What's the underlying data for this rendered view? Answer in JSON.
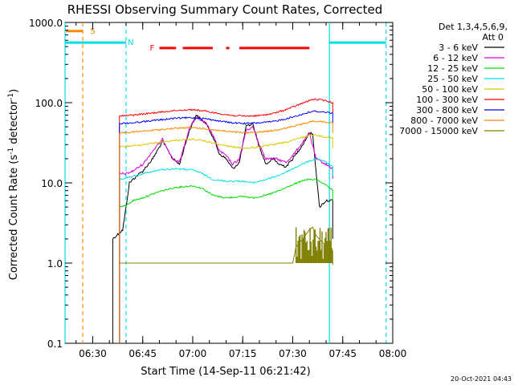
{
  "chart_data": {
    "type": "line",
    "title": "RHESSI Observing Summary Count Rates, Corrected",
    "xlabel": "Start Time (14-Sep-11 06:21:42)",
    "ylabel": "Corrected Count Rate (s⁻¹ detector⁻¹)",
    "ylabel_parts": {
      "main": "Corrected Count Rate (s",
      "sup1": "-1",
      "mid": " detector",
      "sup2": "-1",
      "end": ")"
    },
    "yscale": "log",
    "ylim": [
      0.1,
      1000
    ],
    "xlim": [
      "06:21:42",
      "08:00:00"
    ],
    "x_ticks": [
      "06:30",
      "06:45",
      "07:00",
      "07:15",
      "07:30",
      "07:45",
      "08:00"
    ],
    "y_ticks": [
      "0.1",
      "1.0",
      "10.0",
      "100.0",
      "1000.0"
    ],
    "detectors": "Det 1,3,4,5,6,9,",
    "attenuator": "Att 0",
    "timestamp": "20-Oct-2021 04:43",
    "series": [
      {
        "name": "3 - 6 keV",
        "color": "#000000",
        "points": [
          [
            "06:36:00",
            2.0
          ],
          [
            "06:39:00",
            2.6
          ],
          [
            "06:40:00",
            5
          ],
          [
            "06:41:00",
            10
          ],
          [
            "06:43:00",
            12
          ],
          [
            "06:45:00",
            14
          ],
          [
            "06:48:00",
            20
          ],
          [
            "06:51:00",
            33
          ],
          [
            "06:54:00",
            20
          ],
          [
            "06:56:00",
            17
          ],
          [
            "06:59:00",
            45
          ],
          [
            "07:01:00",
            70
          ],
          [
            "07:04:00",
            55
          ],
          [
            "07:06:00",
            38
          ],
          [
            "07:08:00",
            23
          ],
          [
            "07:10:00",
            20
          ],
          [
            "07:12:00",
            15
          ],
          [
            "07:14:00",
            18
          ],
          [
            "07:16:00",
            50
          ],
          [
            "07:18:00",
            55
          ],
          [
            "07:20:00",
            28
          ],
          [
            "07:22:00",
            17
          ],
          [
            "07:24:00",
            20
          ],
          [
            "07:26:00",
            17
          ],
          [
            "07:28:00",
            16
          ],
          [
            "07:30:00",
            20
          ],
          [
            "07:33:00",
            30
          ],
          [
            "07:35:00",
            42
          ],
          [
            "07:36:00",
            40
          ],
          [
            "07:37:00",
            14
          ],
          [
            "07:38:00",
            5
          ],
          [
            "07:40:00",
            6
          ],
          [
            "07:42:00",
            6
          ]
        ]
      },
      {
        "name": "6 - 12 keV",
        "color": "#dd00dd",
        "points": [
          [
            "06:38:00",
            13
          ],
          [
            "06:40:00",
            13
          ],
          [
            "06:42:00",
            14
          ],
          [
            "06:45:00",
            17
          ],
          [
            "06:48:00",
            25
          ],
          [
            "06:51:00",
            35
          ],
          [
            "06:54:00",
            20
          ],
          [
            "06:56:00",
            18
          ],
          [
            "06:59:00",
            48
          ],
          [
            "07:01:00",
            65
          ],
          [
            "07:04:00",
            55
          ],
          [
            "07:06:00",
            40
          ],
          [
            "07:08:00",
            25
          ],
          [
            "07:10:00",
            22
          ],
          [
            "07:12:00",
            17
          ],
          [
            "07:14:00",
            20
          ],
          [
            "07:16:00",
            45
          ],
          [
            "07:18:00",
            50
          ],
          [
            "07:20:00",
            30
          ],
          [
            "07:22:00",
            20
          ],
          [
            "07:25:00",
            20
          ],
          [
            "07:28:00",
            18
          ],
          [
            "07:30:00",
            22
          ],
          [
            "07:33:00",
            32
          ],
          [
            "07:35:00",
            42
          ],
          [
            "07:37:00",
            20
          ],
          [
            "07:40:00",
            17
          ],
          [
            "07:42:00",
            15
          ]
        ]
      },
      {
        "name": "12 - 25 keV",
        "color": "#00dd00",
        "points": [
          [
            "06:38:00",
            5.0
          ],
          [
            "06:40:00",
            5.2
          ],
          [
            "06:42:00",
            6.0
          ],
          [
            "06:45:00",
            6.5
          ],
          [
            "06:50:00",
            7.8
          ],
          [
            "06:55:00",
            8.8
          ],
          [
            "07:00:00",
            9.2
          ],
          [
            "07:03:00",
            8.5
          ],
          [
            "07:06:00",
            7.0
          ],
          [
            "07:10:00",
            6.5
          ],
          [
            "07:15:00",
            6.8
          ],
          [
            "07:18:00",
            6.5
          ],
          [
            "07:22:00",
            7.0
          ],
          [
            "07:26:00",
            8.0
          ],
          [
            "07:30:00",
            9.5
          ],
          [
            "07:34:00",
            11
          ],
          [
            "07:37:00",
            11
          ],
          [
            "07:39:00",
            10
          ],
          [
            "07:42:00",
            8
          ]
        ]
      },
      {
        "name": "25 - 50 keV",
        "color": "#00e0e0",
        "points": [
          [
            "06:38:00",
            11
          ],
          [
            "06:40:00",
            11.5
          ],
          [
            "06:42:00",
            12
          ],
          [
            "06:45:00",
            13
          ],
          [
            "06:50:00",
            14.5
          ],
          [
            "06:55:00",
            15
          ],
          [
            "07:00:00",
            14.5
          ],
          [
            "07:03:00",
            13
          ],
          [
            "07:06:00",
            11
          ],
          [
            "07:10:00",
            10.5
          ],
          [
            "07:15:00",
            10.5
          ],
          [
            "07:18:00",
            10
          ],
          [
            "07:22:00",
            11
          ],
          [
            "07:26:00",
            12.5
          ],
          [
            "07:30:00",
            15
          ],
          [
            "07:34:00",
            18
          ],
          [
            "07:37:00",
            20
          ],
          [
            "07:39:00",
            19
          ],
          [
            "07:42:00",
            16
          ]
        ]
      },
      {
        "name": "50 - 100 keV",
        "color": "#d8c800",
        "points": [
          [
            "06:38:00",
            28
          ],
          [
            "06:42:00",
            29
          ],
          [
            "06:45:00",
            30
          ],
          [
            "06:50:00",
            32
          ],
          [
            "06:55:00",
            34
          ],
          [
            "07:00:00",
            35
          ],
          [
            "07:04:00",
            33
          ],
          [
            "07:08:00",
            30
          ],
          [
            "07:12:00",
            28
          ],
          [
            "07:16:00",
            27
          ],
          [
            "07:20:00",
            28
          ],
          [
            "07:24:00",
            30
          ],
          [
            "07:28:00",
            32
          ],
          [
            "07:32:00",
            36
          ],
          [
            "07:36:00",
            40
          ],
          [
            "07:39:00",
            38
          ],
          [
            "07:42:00",
            36
          ]
        ]
      },
      {
        "name": "100 - 300 keV",
        "color": "#ff0000",
        "points": [
          [
            "06:38:00",
            68
          ],
          [
            "06:42:00",
            70
          ],
          [
            "06:45:00",
            72
          ],
          [
            "06:50:00",
            76
          ],
          [
            "06:55:00",
            80
          ],
          [
            "07:00:00",
            82
          ],
          [
            "07:04:00",
            78
          ],
          [
            "07:08:00",
            73
          ],
          [
            "07:12:00",
            69
          ],
          [
            "07:16:00",
            68
          ],
          [
            "07:20:00",
            69
          ],
          [
            "07:24:00",
            73
          ],
          [
            "07:28:00",
            82
          ],
          [
            "07:32:00",
            95
          ],
          [
            "07:36:00",
            110
          ],
          [
            "07:39:00",
            108
          ],
          [
            "07:42:00",
            100
          ]
        ]
      },
      {
        "name": "300 - 800 keV",
        "color": "#0000ff",
        "points": [
          [
            "06:38:00",
            55
          ],
          [
            "06:42:00",
            56
          ],
          [
            "06:45:00",
            58
          ],
          [
            "06:50:00",
            61
          ],
          [
            "06:55:00",
            64
          ],
          [
            "07:00:00",
            65
          ],
          [
            "07:04:00",
            63
          ],
          [
            "07:08:00",
            59
          ],
          [
            "07:12:00",
            56
          ],
          [
            "07:16:00",
            55
          ],
          [
            "07:20:00",
            56
          ],
          [
            "07:24:00",
            58
          ],
          [
            "07:28:00",
            63
          ],
          [
            "07:32:00",
            70
          ],
          [
            "07:36:00",
            78
          ],
          [
            "07:39:00",
            77
          ],
          [
            "07:42:00",
            74
          ]
        ]
      },
      {
        "name": "800 - 7000 keV",
        "color": "#ff8800",
        "points": [
          [
            "06:38:00",
            42
          ],
          [
            "06:42:00",
            43
          ],
          [
            "06:45:00",
            44
          ],
          [
            "06:50:00",
            46
          ],
          [
            "06:55:00",
            48
          ],
          [
            "07:00:00",
            49
          ],
          [
            "07:04:00",
            47
          ],
          [
            "07:08:00",
            45
          ],
          [
            "07:12:00",
            43
          ],
          [
            "07:16:00",
            42
          ],
          [
            "07:20:00",
            43
          ],
          [
            "07:24:00",
            45
          ],
          [
            "07:28:00",
            48
          ],
          [
            "07:32:00",
            53
          ],
          [
            "07:36:00",
            59
          ],
          [
            "07:39:00",
            58
          ],
          [
            "07:42:00",
            56
          ]
        ]
      },
      {
        "name": "7000 - 15000 keV",
        "color": "#808000",
        "points": [
          [
            "06:38:00",
            1.0
          ],
          [
            "06:45:00",
            1.0
          ],
          [
            "06:48:00",
            1.0
          ],
          [
            "06:50:00",
            1.0
          ],
          [
            "07:00:00",
            1.0
          ],
          [
            "07:10:00",
            1.0
          ],
          [
            "07:20:00",
            1.0
          ],
          [
            "07:30:00",
            1.0
          ],
          [
            "07:31:00",
            1.6
          ],
          [
            "07:33:00",
            2.0
          ],
          [
            "07:35:00",
            2.6
          ],
          [
            "07:36:00",
            2.8
          ],
          [
            "07:37:00",
            2.2
          ],
          [
            "07:39:00",
            1.8
          ],
          [
            "07:42:00",
            1.4
          ]
        ]
      }
    ],
    "flags": [
      {
        "name": "S",
        "color": "#ff8800",
        "level": 780,
        "ranges": [
          [
            "06:22:00",
            "06:27:00"
          ]
        ]
      },
      {
        "name": "N",
        "color": "#00e0e0",
        "level": 560,
        "ranges": [
          [
            "06:21:42",
            "06:40:00"
          ],
          [
            "07:41:00",
            "07:58:00"
          ]
        ]
      },
      {
        "name": "F",
        "color": "#ff0000",
        "level": 480,
        "ranges": [
          [
            "06:50:00",
            "06:55:00"
          ],
          [
            "06:57:00",
            "07:06:00"
          ],
          [
            "07:10:00",
            "07:11:00"
          ],
          [
            "07:14:00",
            "07:35:00"
          ]
        ]
      }
    ],
    "vlines": [
      {
        "time": "06:27:00",
        "color": "#ff8800",
        "dashed": true
      },
      {
        "time": "06:40:00",
        "color": "#00e0e0",
        "dashed": true
      },
      {
        "time": "07:41:00",
        "color": "#00e0e0",
        "dashed": false
      },
      {
        "time": "07:58:00",
        "color": "#00e0e0",
        "dashed": true
      },
      {
        "time": "06:21:42",
        "color": "#00e0e0",
        "dashed": false
      }
    ]
  }
}
